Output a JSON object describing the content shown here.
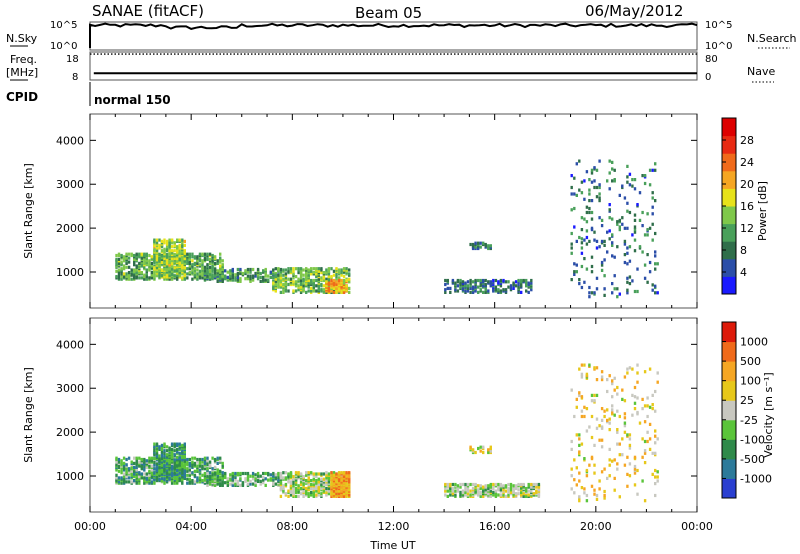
{
  "header": {
    "station": "SANAE (fitACF)",
    "beam": "Beam 05",
    "date": "06/May/2012"
  },
  "nsky_panel": {
    "left_label": "N.Sky",
    "right_label": "N.Search",
    "ticks_left": [
      "10^5",
      "10^0"
    ],
    "ticks_right": [
      "10^5",
      "10^0"
    ],
    "nsky_level": 0.88
  },
  "freq_panel": {
    "left_label_1": "Freq.",
    "left_label_2": "[MHz]",
    "right_label": "Nave",
    "left_ticks": [
      "18",
      "8"
    ],
    "right_ticks": [
      "80",
      "0"
    ],
    "freq_mhz": 10.4,
    "nave": 74
  },
  "cpid_panel": {
    "label": "CPID",
    "mode": "normal 150"
  },
  "chart_data": [
    {
      "type": "heatmap",
      "panel": "power",
      "ylabel": "Slant Range [km]",
      "xlabel": "",
      "xlim_hours": [
        0,
        24
      ],
      "ylim_km": [
        180,
        4600
      ],
      "yticks": [
        "1000",
        "2000",
        "3000",
        "4000"
      ],
      "colorbar": {
        "label": "Power [dB]",
        "ticks": [
          "28",
          "24",
          "20",
          "16",
          "12",
          "8",
          "4"
        ],
        "colors": [
          "#1a1aff",
          "#2b4ea8",
          "#2f6e4a",
          "#49a05a",
          "#7fc84a",
          "#e7e21a",
          "#f5a623",
          "#f06a1a",
          "#e82a12",
          "#dd0000"
        ]
      },
      "regions": [
        {
          "t0": 1.0,
          "t1": 5.2,
          "r0": 800,
          "r1": 1400,
          "density": 0.55,
          "level": 0.35
        },
        {
          "t0": 2.5,
          "t1": 3.8,
          "r0": 850,
          "r1": 1700,
          "density": 0.6,
          "level": 0.45
        },
        {
          "t0": 4.5,
          "t1": 7.5,
          "r0": 750,
          "r1": 1050,
          "density": 0.5,
          "level": 0.3
        },
        {
          "t0": 7.2,
          "t1": 10.2,
          "r0": 500,
          "r1": 1050,
          "density": 0.55,
          "level": 0.4
        },
        {
          "t0": 9.3,
          "t1": 10.1,
          "r0": 500,
          "r1": 800,
          "density": 0.8,
          "level": 0.65
        },
        {
          "t0": 14.0,
          "t1": 17.5,
          "r0": 500,
          "r1": 800,
          "density": 0.45,
          "level": 0.2
        },
        {
          "t0": 15.0,
          "t1": 15.8,
          "r0": 1500,
          "r1": 1650,
          "density": 0.5,
          "level": 0.2
        },
        {
          "t0": 19.0,
          "t1": 22.5,
          "r0": 400,
          "r1": 3500,
          "density": 0.06,
          "level": 0.2
        }
      ]
    },
    {
      "type": "heatmap",
      "panel": "velocity",
      "ylabel": "Slant Range [km]",
      "xlabel": "Time UT",
      "xlim_hours": [
        0,
        24
      ],
      "ylim_km": [
        180,
        4600
      ],
      "yticks": [
        "1000",
        "2000",
        "3000",
        "4000"
      ],
      "xticks": [
        "00:00",
        "04:00",
        "08:00",
        "12:00",
        "16:00",
        "20:00",
        "00:00"
      ],
      "colorbar": {
        "label": "Velocity [m s⁻¹]",
        "ticks": [
          "1000",
          "500",
          "100",
          "25",
          "-25",
          "-100",
          "-500",
          "-1000"
        ],
        "colors": [
          "#2a3fd0",
          "#2c7a9a",
          "#2f8a4a",
          "#5ac43a",
          "#c8c8c0",
          "#e7c81a",
          "#f5a623",
          "#f06a1a",
          "#dd1a0a"
        ]
      },
      "regions": [
        {
          "t0": 1.0,
          "t1": 5.2,
          "r0": 800,
          "r1": 1400,
          "density": 0.55,
          "level": 0.3
        },
        {
          "t0": 2.5,
          "t1": 3.8,
          "r0": 850,
          "r1": 1700,
          "density": 0.6,
          "level": 0.25
        },
        {
          "t0": 4.5,
          "t1": 7.5,
          "r0": 750,
          "r1": 1050,
          "density": 0.5,
          "level": 0.35
        },
        {
          "t0": 7.5,
          "t1": 10.2,
          "r0": 500,
          "r1": 1050,
          "density": 0.55,
          "level": 0.45
        },
        {
          "t0": 9.5,
          "t1": 10.2,
          "r0": 500,
          "r1": 1050,
          "density": 0.9,
          "level": 0.75
        },
        {
          "t0": 14.0,
          "t1": 17.8,
          "r0": 500,
          "r1": 800,
          "density": 0.6,
          "level": 0.45
        },
        {
          "t0": 15.0,
          "t1": 15.8,
          "r0": 1500,
          "r1": 1650,
          "density": 0.5,
          "level": 0.55
        },
        {
          "t0": 19.0,
          "t1": 22.5,
          "r0": 400,
          "r1": 3500,
          "density": 0.06,
          "level": 0.6
        }
      ]
    }
  ]
}
